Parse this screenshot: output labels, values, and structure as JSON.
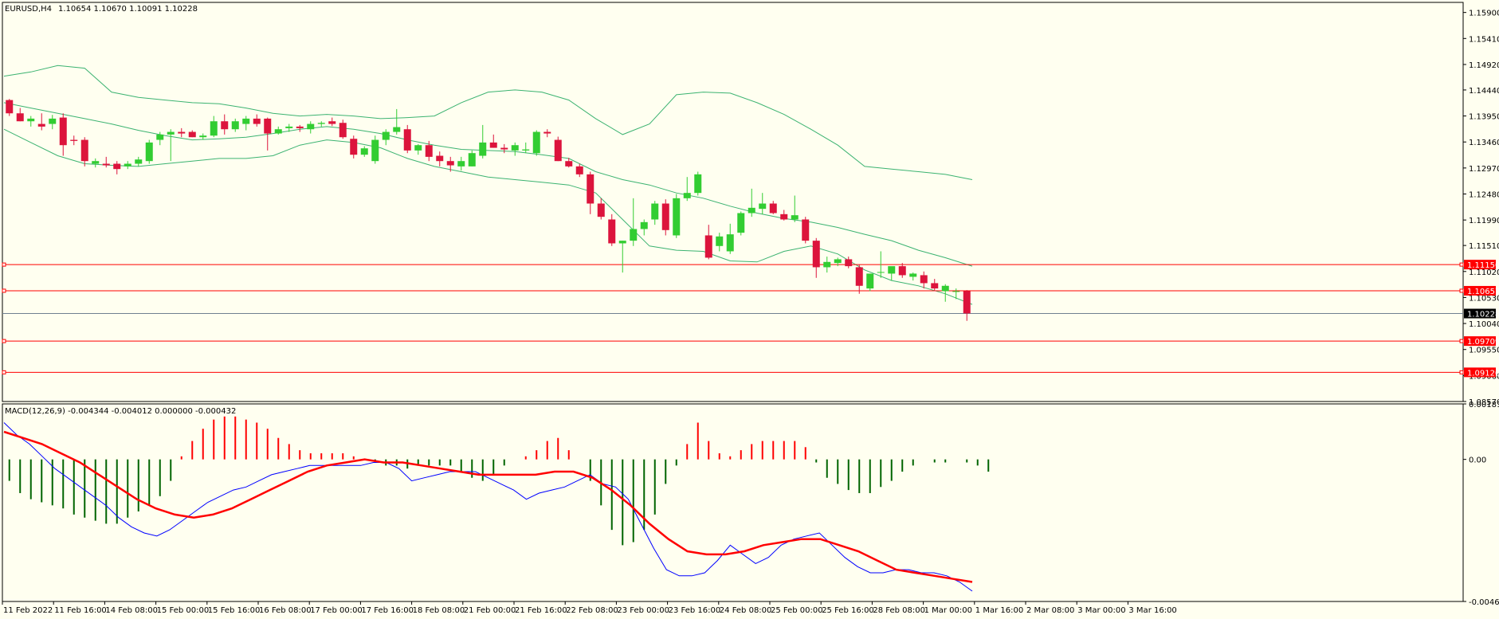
{
  "header": {
    "symbol": "EURUSD,H4",
    "ohlc": "1.10654 1.10670 1.10091 1.10228"
  },
  "price_axis": {
    "ticks": [
      "1.15900",
      "1.15410",
      "1.14920",
      "1.14440",
      "1.13950",
      "1.13460",
      "1.12970",
      "1.12480",
      "1.11990",
      "1.11510",
      "1.11020",
      "1.10530",
      "1.10040",
      "1.09550",
      "1.09060",
      "1.08570"
    ],
    "current_price": "1.10228",
    "levels": [
      "1.11150",
      "1.10657",
      "1.09709",
      "1.09120"
    ]
  },
  "macd": {
    "label": "MACD(12,26,9) -0.004344 -0.004012 0.000000 -0.000432",
    "ticks": [
      "0.001811",
      "0.00",
      "-0.004637"
    ]
  },
  "time_axis": {
    "labels": [
      "11 Feb 2022",
      "11 Feb 16:00",
      "14 Feb 08:00",
      "15 Feb 00:00",
      "15 Feb 16:00",
      "16 Feb 08:00",
      "17 Feb 00:00",
      "17 Feb 16:00",
      "18 Feb 08:00",
      "21 Feb 00:00",
      "21 Feb 16:00",
      "22 Feb 08:00",
      "23 Feb 00:00",
      "23 Feb 16:00",
      "24 Feb 08:00",
      "25 Feb 00:00",
      "25 Feb 16:00",
      "28 Feb 08:00",
      "1 Mar 00:00",
      "1 Mar 16:00",
      "2 Mar 08:00",
      "3 Mar 00:00",
      "3 Mar 16:00"
    ]
  },
  "colors": {
    "background": "#fffff0",
    "bull": "#32cd32",
    "bear": "#dc143c",
    "bands": "#3cb371",
    "level": "#ff0000",
    "macd_line": "#0000ff",
    "signal_line": "#ff0000",
    "hist_pos": "#ff0000",
    "hist_neg": "#006400"
  },
  "chart_data": [
    {
      "type": "candlestick",
      "title": "EURUSD,H4",
      "ylim": [
        1.0857,
        1.1609
      ],
      "candles": [
        [
          1.1425,
          1.1427,
          1.1395,
          1.14
        ],
        [
          1.14,
          1.141,
          1.1385,
          1.1385
        ],
        [
          1.1385,
          1.1395,
          1.1375,
          1.139
        ],
        [
          1.138,
          1.14,
          1.1368,
          1.1375
        ],
        [
          1.138,
          1.1397,
          1.137,
          1.139
        ],
        [
          1.1392,
          1.14,
          1.132,
          1.134
        ],
        [
          1.135,
          1.1358,
          1.134,
          1.1348
        ],
        [
          1.135,
          1.1355,
          1.13,
          1.131
        ],
        [
          1.1305,
          1.1315,
          1.1298,
          1.131
        ],
        [
          1.1305,
          1.1318,
          1.1298,
          1.1302
        ],
        [
          1.1305,
          1.131,
          1.1285,
          1.1295
        ],
        [
          1.13,
          1.131,
          1.1295,
          1.1305
        ],
        [
          1.1305,
          1.1318,
          1.13,
          1.1313
        ],
        [
          1.131,
          1.135,
          1.1305,
          1.1345
        ],
        [
          1.135,
          1.1365,
          1.134,
          1.136
        ],
        [
          1.136,
          1.137,
          1.131,
          1.1365
        ],
        [
          1.1365,
          1.1372,
          1.1355,
          1.1362
        ],
        [
          1.1365,
          1.1368,
          1.1355,
          1.1355
        ],
        [
          1.1355,
          1.1362,
          1.135,
          1.1358
        ],
        [
          1.1358,
          1.1395,
          1.1355,
          1.1385
        ],
        [
          1.1385,
          1.1398,
          1.136,
          1.137
        ],
        [
          1.137,
          1.139,
          1.1365,
          1.1385
        ],
        [
          1.138,
          1.1395,
          1.1368,
          1.139
        ],
        [
          1.139,
          1.1398,
          1.1375,
          1.138
        ],
        [
          1.139,
          1.1392,
          1.133,
          1.1362
        ],
        [
          1.1362,
          1.1375,
          1.136,
          1.137
        ],
        [
          1.1372,
          1.138,
          1.1365,
          1.1375
        ],
        [
          1.1375,
          1.1378,
          1.1365,
          1.1372
        ],
        [
          1.137,
          1.1385,
          1.1362,
          1.138
        ],
        [
          1.138,
          1.1385,
          1.1375,
          1.1382
        ],
        [
          1.1385,
          1.1392,
          1.1376,
          1.138
        ],
        [
          1.1382,
          1.1388,
          1.1352,
          1.1355
        ],
        [
          1.1352,
          1.1358,
          1.1315,
          1.1322
        ],
        [
          1.1322,
          1.1338,
          1.1318,
          1.1334
        ],
        [
          1.131,
          1.1358,
          1.1305,
          1.135
        ],
        [
          1.135,
          1.137,
          1.134,
          1.1365
        ],
        [
          1.1365,
          1.1408,
          1.136,
          1.1374
        ],
        [
          1.137,
          1.1378,
          1.1325,
          1.133
        ],
        [
          1.133,
          1.1342,
          1.1322,
          1.134
        ],
        [
          1.134,
          1.1348,
          1.131,
          1.1318
        ],
        [
          1.132,
          1.1328,
          1.13,
          1.131
        ],
        [
          1.131,
          1.1318,
          1.129,
          1.1302
        ],
        [
          1.13,
          1.1318,
          1.1292,
          1.131
        ],
        [
          1.13,
          1.133,
          1.13,
          1.1325
        ],
        [
          1.132,
          1.1378,
          1.1315,
          1.1345
        ],
        [
          1.1345,
          1.136,
          1.1335,
          1.1335
        ],
        [
          1.1335,
          1.1342,
          1.1325,
          1.1332
        ],
        [
          1.133,
          1.1345,
          1.132,
          1.134
        ],
        [
          1.133,
          1.1345,
          1.1325,
          1.1332
        ],
        [
          1.1325,
          1.1368,
          1.132,
          1.1365
        ],
        [
          1.1365,
          1.137,
          1.1355,
          1.1362
        ],
        [
          1.135,
          1.1356,
          1.131,
          1.131
        ],
        [
          1.131,
          1.1316,
          1.1298,
          1.13
        ],
        [
          1.13,
          1.1305,
          1.128,
          1.1285
        ],
        [
          1.1285,
          1.129,
          1.121,
          1.123
        ],
        [
          1.123,
          1.124,
          1.12,
          1.1205
        ],
        [
          1.12,
          1.121,
          1.115,
          1.1155
        ],
        [
          1.1155,
          1.116,
          1.11,
          1.116
        ],
        [
          1.116,
          1.124,
          1.115,
          1.1182
        ],
        [
          1.1182,
          1.12,
          1.117,
          1.1195
        ],
        [
          1.12,
          1.1235,
          1.119,
          1.123
        ],
        [
          1.123,
          1.1238,
          1.117,
          1.118
        ],
        [
          1.117,
          1.1248,
          1.1165,
          1.124
        ],
        [
          1.124,
          1.128,
          1.1235,
          1.125
        ],
        [
          1.125,
          1.129,
          1.1245,
          1.1285
        ],
        [
          1.117,
          1.119,
          1.1125,
          1.1128
        ],
        [
          1.115,
          1.1175,
          1.114,
          1.1168
        ],
        [
          1.114,
          1.1192,
          1.1135,
          1.1172
        ],
        [
          1.1175,
          1.1215,
          1.117,
          1.1212
        ],
        [
          1.1212,
          1.1258,
          1.1205,
          1.1222
        ],
        [
          1.122,
          1.125,
          1.121,
          1.123
        ],
        [
          1.123,
          1.1235,
          1.121,
          1.1212
        ],
        [
          1.121,
          1.1218,
          1.1198,
          1.12
        ],
        [
          1.12,
          1.1245,
          1.1195,
          1.1208
        ],
        [
          1.12,
          1.1205,
          1.1155,
          1.116
        ],
        [
          1.116,
          1.1165,
          1.109,
          1.111
        ],
        [
          1.111,
          1.113,
          1.11,
          1.112
        ],
        [
          1.1118,
          1.1128,
          1.1112,
          1.1125
        ],
        [
          1.1125,
          1.113,
          1.1108,
          1.1112
        ],
        [
          1.111,
          1.1115,
          1.106,
          1.1075
        ],
        [
          1.107,
          1.1098,
          1.1065,
          1.1098
        ],
        [
          1.11,
          1.114,
          1.109,
          1.1101
        ],
        [
          1.1098,
          1.111,
          1.1085,
          1.1112
        ],
        [
          1.1112,
          1.1118,
          1.109,
          1.1095
        ],
        [
          1.1092,
          1.11,
          1.1085,
          1.1098
        ],
        [
          1.1095,
          1.1102,
          1.107,
          1.108
        ],
        [
          1.108,
          1.1088,
          1.1065,
          1.107
        ],
        [
          1.1065,
          1.1078,
          1.1045,
          1.1075
        ],
        [
          1.1065,
          1.107,
          1.105,
          1.1065
        ],
        [
          1.1065,
          1.1067,
          1.1009,
          1.1023
        ]
      ],
      "bollinger_upper": [
        1.147,
        1.1478,
        1.149,
        1.1485,
        1.144,
        1.143,
        1.1425,
        1.142,
        1.1418,
        1.141,
        1.14,
        1.1395,
        1.1398,
        1.1395,
        1.139,
        1.1392,
        1.1395,
        1.142,
        1.144,
        1.1444,
        1.144,
        1.1425,
        1.139,
        1.136,
        1.138,
        1.1435,
        1.144,
        1.1438,
        1.142,
        1.1398,
        1.137,
        1.134,
        1.13,
        1.1295,
        1.129,
        1.1285,
        1.1275
      ],
      "bollinger_middle": [
        1.142,
        1.141,
        1.14,
        1.139,
        1.138,
        1.1368,
        1.1358,
        1.135,
        1.1352,
        1.1355,
        1.1362,
        1.137,
        1.1375,
        1.137,
        1.1362,
        1.135,
        1.134,
        1.1332,
        1.133,
        1.1328,
        1.1322,
        1.1315,
        1.129,
        1.1275,
        1.1265,
        1.125,
        1.124,
        1.1225,
        1.1212,
        1.1202,
        1.1195,
        1.1185,
        1.1172,
        1.116,
        1.1142,
        1.1128,
        1.1112
      ],
      "bollinger_lower": [
        1.137,
        1.1345,
        1.132,
        1.1305,
        1.1302,
        1.13,
        1.1305,
        1.131,
        1.1315,
        1.1315,
        1.132,
        1.134,
        1.135,
        1.1345,
        1.1335,
        1.1315,
        1.13,
        1.129,
        1.128,
        1.1275,
        1.127,
        1.1265,
        1.125,
        1.12,
        1.115,
        1.1142,
        1.114,
        1.1122,
        1.112,
        1.114,
        1.115,
        1.1135,
        1.1105,
        1.1085,
        1.1075,
        1.106,
        1.104
      ]
    },
    {
      "type": "bar",
      "title": "MACD(12,26,9)",
      "ylim": [
        -0.004637,
        0.001811
      ],
      "histogram": [
        -0.0007,
        -0.0011,
        -0.0013,
        -0.0014,
        -0.0015,
        -0.0016,
        -0.0018,
        -0.0019,
        -0.002,
        -0.0021,
        -0.0021,
        -0.0019,
        -0.0017,
        -0.0015,
        -0.0012,
        -0.0007,
        0.0001,
        0.0006,
        0.001,
        0.0013,
        0.0014,
        0.0014,
        0.0013,
        0.0012,
        0.001,
        0.0007,
        0.0005,
        0.0003,
        0.0002,
        0.0002,
        0.0002,
        0.0002,
        0.0001,
        0.0,
        -0.0001,
        -0.0002,
        -0.0002,
        -0.0003,
        -0.0002,
        -0.0002,
        -0.0002,
        -0.0002,
        -0.0004,
        -0.0006,
        -0.0007,
        -0.0005,
        -0.0002,
        0.0,
        0.0001,
        0.0003,
        0.0006,
        0.0007,
        0.0003,
        0.0,
        -0.0007,
        -0.0015,
        -0.0023,
        -0.0028,
        -0.0027,
        -0.0023,
        -0.0018,
        -0.0008,
        -0.0002,
        0.0005,
        0.0012,
        0.0006,
        0.0002,
        0.0001,
        0.0003,
        0.0005,
        0.0006,
        0.0006,
        0.0006,
        0.0006,
        0.0004,
        -0.0001,
        -0.0006,
        -0.0008,
        -0.001,
        -0.0011,
        -0.0011,
        -0.0009,
        -0.0007,
        -0.0004,
        -0.0002,
        0.0,
        -0.0001,
        -0.0001,
        0.0,
        -0.0001,
        -0.0002,
        -0.0004
      ],
      "macd": [
        0.0012,
        0.0008,
        0.0005,
        0.0001,
        -0.0003,
        -0.0006,
        -0.0009,
        -0.0012,
        -0.0015,
        -0.0019,
        -0.0022,
        -0.0024,
        -0.0025,
        -0.0023,
        -0.002,
        -0.0017,
        -0.0014,
        -0.0012,
        -0.001,
        -0.0009,
        -0.0007,
        -0.0005,
        -0.0004,
        -0.0003,
        -0.0002,
        -0.0002,
        -0.0002,
        -0.0002,
        -0.0002,
        -0.0001,
        -0.0001,
        -0.0003,
        -0.0007,
        -0.0006,
        -0.0005,
        -0.0004,
        -0.0004,
        -0.0004,
        -0.0006,
        -0.0008,
        -0.001,
        -0.0013,
        -0.0011,
        -0.001,
        -0.0009,
        -0.0007,
        -0.0005,
        -0.0008,
        -0.0009,
        -0.0013,
        -0.0021,
        -0.0029,
        -0.0036,
        -0.0038,
        -0.0038,
        -0.0037,
        -0.0033,
        -0.0028,
        -0.0031,
        -0.0034,
        -0.0032,
        -0.0028,
        -0.0026,
        -0.0025,
        -0.0024,
        -0.0028,
        -0.0032,
        -0.0035,
        -0.0037,
        -0.0037,
        -0.0036,
        -0.0036,
        -0.0037,
        -0.0037,
        -0.0038,
        -0.004,
        -0.0043
      ],
      "signal": [
        0.0009,
        0.0007,
        0.0005,
        0.0002,
        -0.0001,
        -0.0005,
        -0.0009,
        -0.0013,
        -0.0016,
        -0.0018,
        -0.0019,
        -0.0018,
        -0.0016,
        -0.0013,
        -0.001,
        -0.0007,
        -0.0004,
        -0.0002,
        -0.0001,
        0.0,
        -0.0001,
        -0.0001,
        -0.0002,
        -0.0003,
        -0.0004,
        -0.0005,
        -0.0005,
        -0.0005,
        -0.0005,
        -0.0004,
        -0.0004,
        -0.0006,
        -0.001,
        -0.0015,
        -0.0021,
        -0.0026,
        -0.003,
        -0.0031,
        -0.0031,
        -0.003,
        -0.0028,
        -0.0027,
        -0.0026,
        -0.0026,
        -0.0028,
        -0.003,
        -0.0033,
        -0.0036,
        -0.0037,
        -0.0038,
        -0.0039,
        -0.004
      ]
    }
  ]
}
